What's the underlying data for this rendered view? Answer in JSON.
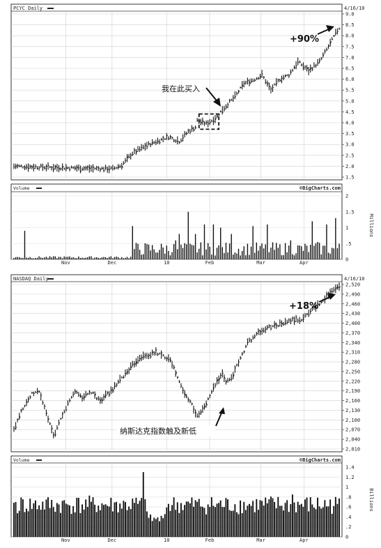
{
  "chart_data": [
    {
      "type": "bar",
      "title": "PCYC Daily",
      "date_label": "4/16/10",
      "source_label": "©BigCharts.com",
      "xlabels": [
        "Nov",
        "Dec",
        "10",
        "Feb",
        "Mar",
        "Apr"
      ],
      "ylim": [
        1.5,
        9.0
      ],
      "yticks": [
        "1.5",
        "2.0",
        "2.5",
        "3.0",
        "3.5",
        "4.0",
        "4.5",
        "5.0",
        "5.5",
        "6.0",
        "6.5",
        "7.0",
        "7.5",
        "8.0",
        "8.5",
        "9.0"
      ],
      "price_path": [
        [
          0,
          2.0
        ],
        [
          20,
          1.95
        ],
        [
          42,
          1.9
        ],
        [
          55,
          1.88
        ],
        [
          60,
          2.05
        ],
        [
          66,
          2.6
        ],
        [
          75,
          3.0
        ],
        [
          86,
          3.35
        ],
        [
          92,
          3.15
        ],
        [
          97,
          3.6
        ],
        [
          101,
          3.8
        ],
        [
          102,
          4.1
        ],
        [
          107,
          3.95
        ],
        [
          112,
          4.2
        ],
        [
          116,
          4.6
        ],
        [
          123,
          5.2
        ],
        [
          128,
          5.8
        ],
        [
          134,
          6.0
        ],
        [
          138,
          6.2
        ],
        [
          143,
          5.5
        ],
        [
          148,
          6.0
        ],
        [
          153,
          6.2
        ],
        [
          158,
          6.8
        ],
        [
          164,
          6.4
        ],
        [
          170,
          6.8
        ],
        [
          175,
          7.5
        ],
        [
          179,
          8.1
        ],
        [
          181,
          8.35
        ]
      ],
      "highlight_range": [
        103,
        114
      ],
      "highlight_price": [
        3.7,
        4.4
      ],
      "annotations": {
        "buy": "我在此买入",
        "gain": "+90%"
      },
      "volume": {
        "label": "Volume",
        "unit": "Millions",
        "ylim": [
          0,
          2
        ],
        "yticks": [
          "0",
          ".5",
          "1",
          "1.5",
          "2"
        ],
        "spikes": [
          [
            6,
            0.9
          ],
          [
            66,
            1.05
          ],
          [
            90,
            0.6
          ],
          [
            92,
            0.8
          ],
          [
            97,
            1.5
          ],
          [
            101,
            0.8
          ],
          [
            106,
            1.1
          ],
          [
            111,
            1.1
          ],
          [
            115,
            1.0
          ],
          [
            121,
            0.8
          ],
          [
            133,
            1.05
          ],
          [
            141,
            1.1
          ],
          [
            154,
            0.6
          ],
          [
            166,
            1.2
          ],
          [
            169,
            0.55
          ],
          [
            174,
            1.1
          ],
          [
            179,
            1.3
          ]
        ]
      }
    },
    {
      "type": "bar",
      "title": "NASDAQ Daily",
      "date_label": "4/16/10",
      "source_label": "©BigCharts.com",
      "xlabels": [
        "Nov",
        "Dec",
        "10",
        "Feb",
        "Mar",
        "Apr"
      ],
      "ylim": [
        2010,
        2520
      ],
      "yticks": [
        "2,010",
        "2,040",
        "2,070",
        "2,100",
        "2,130",
        "2,160",
        "2,190",
        "2,220",
        "2,250",
        "2,280",
        "2,310",
        "2,340",
        "2,370",
        "2,400",
        "2,430",
        "2,460",
        "2,490",
        "2,520"
      ],
      "price_path": [
        [
          0,
          2070
        ],
        [
          4,
          2130
        ],
        [
          10,
          2180
        ],
        [
          14,
          2190
        ],
        [
          18,
          2120
        ],
        [
          22,
          2050
        ],
        [
          26,
          2100
        ],
        [
          30,
          2150
        ],
        [
          34,
          2190
        ],
        [
          38,
          2170
        ],
        [
          43,
          2185
        ],
        [
          48,
          2160
        ],
        [
          55,
          2195
        ],
        [
          63,
          2250
        ],
        [
          70,
          2295
        ],
        [
          75,
          2300
        ],
        [
          79,
          2310
        ],
        [
          82,
          2300
        ],
        [
          87,
          2290
        ],
        [
          91,
          2230
        ],
        [
          95,
          2180
        ],
        [
          98,
          2160
        ],
        [
          102,
          2110
        ],
        [
          106,
          2140
        ],
        [
          112,
          2210
        ],
        [
          116,
          2240
        ],
        [
          118,
          2220
        ],
        [
          121,
          2230
        ],
        [
          126,
          2290
        ],
        [
          130,
          2340
        ],
        [
          136,
          2370
        ],
        [
          143,
          2390
        ],
        [
          150,
          2400
        ],
        [
          155,
          2410
        ],
        [
          160,
          2410
        ],
        [
          165,
          2440
        ],
        [
          170,
          2460
        ],
        [
          175,
          2490
        ],
        [
          180,
          2510
        ]
      ],
      "annotations": {
        "low": "纳斯达克指数触及新低",
        "gain": "+18%"
      },
      "volume": {
        "label": "Volume",
        "unit": "Billions",
        "ylim": [
          0,
          1.4
        ],
        "yticks": [
          "0",
          ".2",
          ".4",
          ".6",
          ".8",
          "1",
          "1.2",
          "1.4"
        ],
        "spikes": [
          [
            72,
            1.3
          ],
          [
            155,
            0.85
          ]
        ]
      }
    }
  ]
}
